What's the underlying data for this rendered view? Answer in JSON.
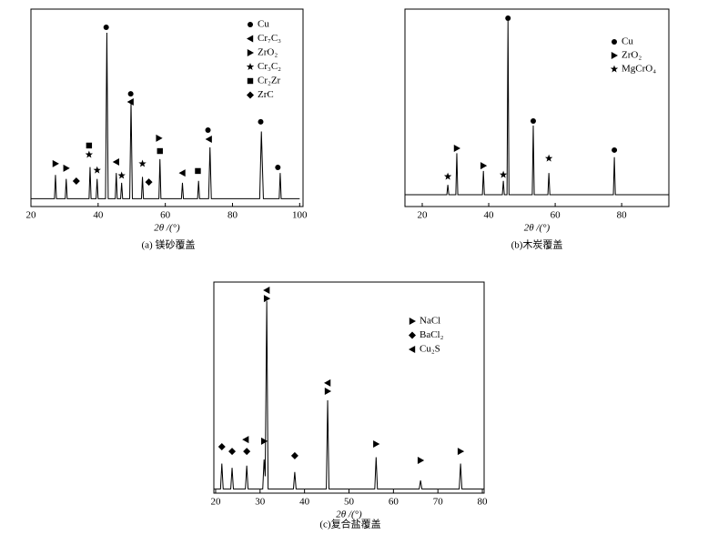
{
  "chart_data": [
    {
      "type": "line",
      "caption": "(a) 镁砂覆盖",
      "xlabel": "2θ /(°)",
      "xlim": [
        20,
        101
      ],
      "ylim": [
        0,
        100
      ],
      "xticks": [
        20,
        40,
        60,
        80,
        100
      ],
      "x": [
        20,
        27.0,
        27.3,
        27.6,
        30.2,
        30.5,
        30.8,
        37.3,
        37.6,
        37.9,
        39.4,
        39.7,
        40.0,
        42.2,
        42.6,
        43.0,
        45.1,
        45.4,
        45.7,
        46.7,
        47.0,
        47.3,
        49.4,
        49.8,
        50.2,
        52.9,
        53.2,
        53.5,
        58.1,
        58.4,
        58.7,
        64.8,
        65.1,
        65.4,
        69.6,
        69.9,
        70.2,
        72.9,
        73.3,
        73.7,
        88.1,
        88.6,
        89.2,
        93.9,
        94.2,
        94.5,
        100
      ],
      "values": [
        4,
        4,
        16,
        4,
        4,
        14,
        4,
        4,
        20,
        4,
        4,
        14,
        4,
        4,
        88,
        4,
        4,
        17,
        4,
        4,
        12,
        4,
        4,
        53,
        4,
        4,
        15,
        4,
        4,
        24,
        4,
        4,
        12,
        4,
        4,
        13,
        4,
        4,
        30,
        4,
        4,
        38,
        4,
        4,
        17,
        4,
        4
      ],
      "color": "#000000",
      "markers": [
        {
          "name": "Cu",
          "symbol": "circle",
          "x": [
            42.4,
            49.7,
            72.7,
            88.4,
            93.5
          ],
          "y": [
            90.8,
            57.1,
            38.7,
            42.9,
            19.8
          ]
        },
        {
          "name": "Cr₇C₃",
          "symbol": "tri-left",
          "x": [
            49.7,
            45.4,
            65.1,
            73.0
          ],
          "y": [
            53.0,
            22.6,
            17.0,
            34.1
          ]
        },
        {
          "name": "ZrO₂",
          "symbol": "tri-right",
          "x": [
            27.3,
            30.5,
            58.1
          ],
          "y": [
            21.7,
            19.4,
            34.6
          ]
        },
        {
          "name": "Cr₃C₂",
          "symbol": "star",
          "x": [
            37.3,
            39.7,
            47.0,
            53.2
          ],
          "y": [
            26.3,
            18.4,
            15.7,
            21.7
          ]
        },
        {
          "name": "Cr₂Zr",
          "symbol": "square",
          "x": [
            37.3,
            58.4,
            69.7
          ],
          "y": [
            30.9,
            28.1,
            18.0
          ]
        },
        {
          "name": "ZrC",
          "symbol": "diamond",
          "x": [
            33.5,
            55.1
          ],
          "y": [
            12.9,
            12.4
          ]
        }
      ]
    },
    {
      "type": "line",
      "caption": "(b)木炭覆盖",
      "xlabel": "2θ /(°)",
      "xlim": [
        14.8,
        94.2
      ],
      "ylim": [
        0,
        100
      ],
      "xticks": [
        20,
        40,
        60,
        80
      ],
      "x": [
        14.8,
        27.4,
        27.7,
        28.0,
        30.1,
        30.4,
        30.7,
        38.1,
        38.4,
        38.7,
        44.1,
        44.4,
        44.7,
        45.5,
        45.8,
        46.1,
        53.1,
        53.4,
        53.7,
        57.8,
        58.1,
        58.4,
        77.5,
        77.8,
        78.1,
        94.2
      ],
      "values": [
        6,
        6,
        11,
        6,
        6,
        27,
        6,
        6,
        18,
        6,
        6,
        13,
        6,
        6,
        94,
        6,
        6,
        41,
        6,
        6,
        17,
        6,
        6,
        25,
        6,
        6
      ],
      "color": "#000000",
      "markers": [
        {
          "name": "Cu",
          "symbol": "circle",
          "x": [
            45.8,
            53.4,
            77.8
          ],
          "y": [
            95.4,
            43.3,
            28.6
          ]
        },
        {
          "name": "ZrO₂",
          "symbol": "tri-right",
          "x": [
            30.4,
            38.4
          ],
          "y": [
            29.5,
            20.7
          ]
        },
        {
          "name": "MgCrO₄",
          "symbol": "star",
          "x": [
            27.7,
            44.4,
            58.1
          ],
          "y": [
            15.2,
            16.1,
            24.4
          ]
        }
      ]
    },
    {
      "type": "line",
      "caption": "(c)复合盐覆盖",
      "xlabel": "2θ /(°)",
      "xlim": [
        19.6,
        80.4
      ],
      "ylim": [
        0,
        100
      ],
      "xticks": [
        20,
        30,
        40,
        50,
        60,
        70,
        80
      ],
      "x": [
        19.6,
        21.1,
        21.4,
        21.7,
        23.4,
        23.7,
        24.0,
        26.7,
        27.0,
        27.3,
        30.6,
        30.9,
        31.15,
        31.5,
        31.8,
        37.5,
        37.8,
        38.1,
        44.9,
        45.2,
        45.5,
        55.8,
        56.1,
        56.4,
        65.8,
        66.1,
        66.4,
        74.8,
        75.1,
        75.4,
        80.4
      ],
      "values": [
        2,
        2,
        14,
        2,
        2,
        12,
        2,
        2,
        13,
        2,
        2,
        16,
        8,
        91,
        2,
        2,
        10,
        2,
        2,
        44,
        2,
        2,
        17,
        2,
        2,
        6,
        2,
        2,
        14,
        2,
        2
      ],
      "color": "#000000",
      "markers": [
        {
          "name": "NaCl",
          "symbol": "tri-right",
          "x": [
            31.5,
            45.2,
            56.1,
            66.1,
            75.1,
            30.9
          ],
          "y": [
            92.2,
            48.3,
            23.3,
            15.5,
            19.8,
            24.6
          ]
        },
        {
          "name": "BaCl₂",
          "symbol": "diamond",
          "x": [
            21.4,
            23.7,
            27.0,
            37.8
          ],
          "y": [
            22.0,
            19.8,
            19.8,
            17.7
          ]
        },
        {
          "name": "Cu₂S",
          "symbol": "tri-left",
          "x": [
            31.5,
            45.2,
            26.8
          ],
          "y": [
            96.1,
            52.2,
            25.4
          ]
        }
      ]
    }
  ]
}
